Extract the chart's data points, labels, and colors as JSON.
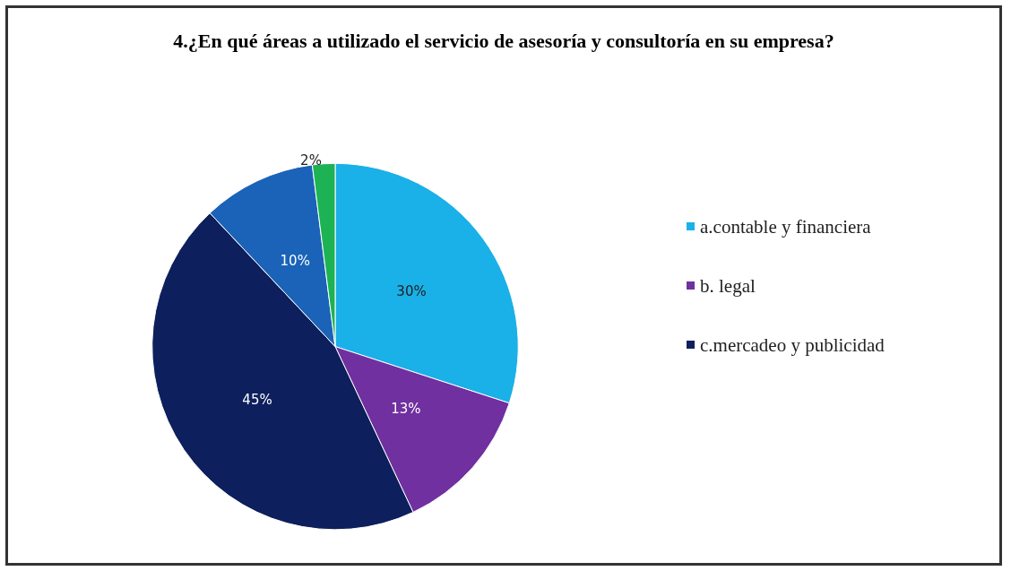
{
  "chart_data": {
    "type": "pie",
    "title": "4.¿En qué áreas a utilizado el servicio de asesoría y consultoría en su empresa?",
    "categories": [
      "a.contable y financiera",
      "b. legal",
      "c.mercadeo y publicidad",
      null,
      null
    ],
    "values": [
      30,
      13,
      45,
      10,
      2
    ],
    "colors": [
      "#1ab0e8",
      "#7030a0",
      "#0d1f5c",
      "#1a63b8",
      "#1db354"
    ],
    "value_labels": [
      "30%",
      "13%",
      "45%",
      "10%",
      "2%"
    ],
    "legend": "right"
  }
}
